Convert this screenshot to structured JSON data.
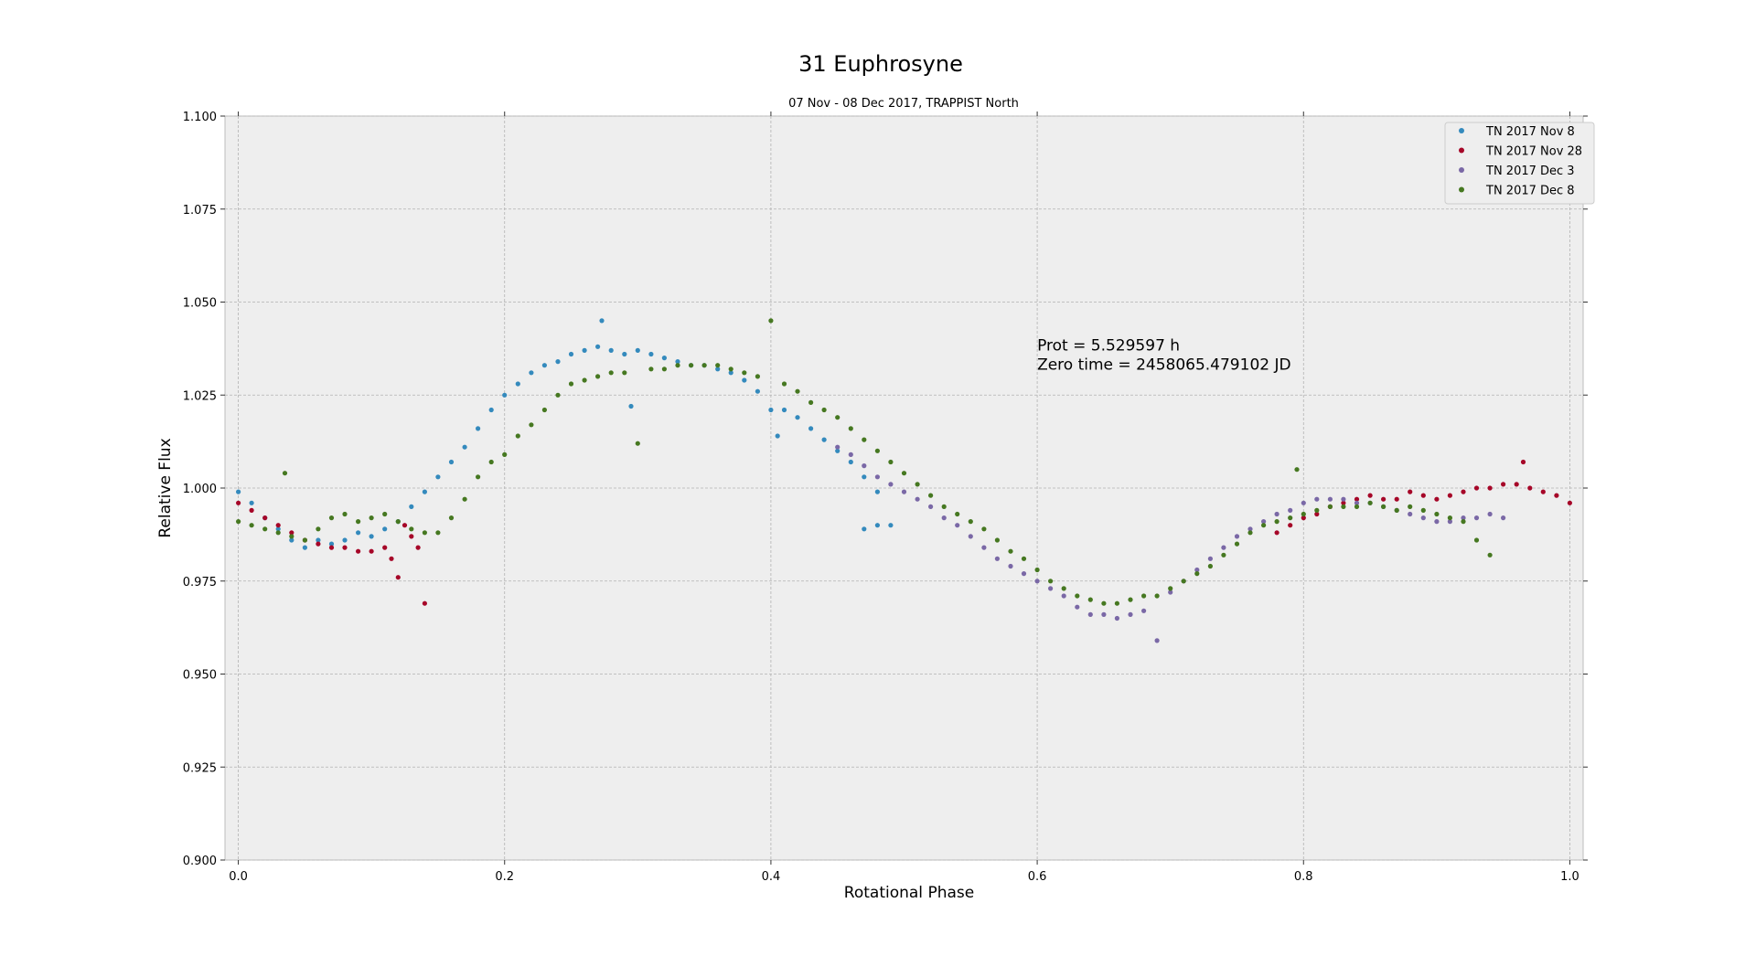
{
  "chart_data": {
    "type": "scatter",
    "title": "31 Euphrosyne",
    "subtitle": "07 Nov - 08 Dec 2017, TRAPPIST North",
    "xlabel": "Rotational Phase",
    "ylabel": "Relative Flux",
    "xlim": [
      -0.01,
      1.01
    ],
    "ylim": [
      0.9,
      1.1
    ],
    "xticks": [
      "0.0",
      "0.2",
      "0.4",
      "0.6",
      "0.8",
      "1.0"
    ],
    "yticks": [
      "0.900",
      "0.925",
      "0.950",
      "0.975",
      "1.000",
      "1.025",
      "1.050",
      "1.075",
      "1.100"
    ],
    "grid": true,
    "legend_position": "top-right",
    "annotation_lines": [
      "Prot = 5.529597 h",
      "Zero time = 2458065.479102 JD"
    ],
    "annotation_anchor": {
      "x": 0.6,
      "y": 1.037
    },
    "background_color": "#eeeeee",
    "series": [
      {
        "name": "TN 2017 Nov 8",
        "color": "#348abd",
        "points": [
          [
            0.0,
            0.999
          ],
          [
            0.01,
            0.996
          ],
          [
            0.02,
            0.992
          ],
          [
            0.03,
            0.989
          ],
          [
            0.04,
            0.986
          ],
          [
            0.05,
            0.984
          ],
          [
            0.06,
            0.986
          ],
          [
            0.07,
            0.985
          ],
          [
            0.08,
            0.986
          ],
          [
            0.09,
            0.988
          ],
          [
            0.1,
            0.987
          ],
          [
            0.11,
            0.989
          ],
          [
            0.12,
            0.991
          ],
          [
            0.13,
            0.995
          ],
          [
            0.14,
            0.999
          ],
          [
            0.15,
            1.003
          ],
          [
            0.16,
            1.007
          ],
          [
            0.17,
            1.011
          ],
          [
            0.18,
            1.016
          ],
          [
            0.19,
            1.021
          ],
          [
            0.2,
            1.025
          ],
          [
            0.21,
            1.028
          ],
          [
            0.22,
            1.031
          ],
          [
            0.23,
            1.033
          ],
          [
            0.24,
            1.034
          ],
          [
            0.25,
            1.036
          ],
          [
            0.26,
            1.037
          ],
          [
            0.27,
            1.038
          ],
          [
            0.273,
            1.045
          ],
          [
            0.28,
            1.037
          ],
          [
            0.29,
            1.036
          ],
          [
            0.295,
            1.022
          ],
          [
            0.3,
            1.037
          ],
          [
            0.31,
            1.036
          ],
          [
            0.32,
            1.035
          ],
          [
            0.33,
            1.034
          ],
          [
            0.34,
            1.033
          ],
          [
            0.35,
            1.033
          ],
          [
            0.36,
            1.032
          ],
          [
            0.37,
            1.031
          ],
          [
            0.38,
            1.029
          ],
          [
            0.39,
            1.026
          ],
          [
            0.4,
            1.021
          ],
          [
            0.405,
            1.014
          ],
          [
            0.41,
            1.021
          ],
          [
            0.42,
            1.019
          ],
          [
            0.43,
            1.016
          ],
          [
            0.44,
            1.013
          ],
          [
            0.45,
            1.01
          ],
          [
            0.46,
            1.007
          ],
          [
            0.47,
            1.003
          ],
          [
            0.48,
            0.999
          ],
          [
            0.47,
            0.989
          ],
          [
            0.48,
            0.99
          ],
          [
            0.49,
            0.99
          ]
        ]
      },
      {
        "name": "TN 2017 Nov 28",
        "color": "#a60628",
        "points": [
          [
            0.0,
            0.996
          ],
          [
            0.01,
            0.994
          ],
          [
            0.02,
            0.992
          ],
          [
            0.03,
            0.99
          ],
          [
            0.04,
            0.988
          ],
          [
            0.05,
            0.986
          ],
          [
            0.06,
            0.985
          ],
          [
            0.07,
            0.984
          ],
          [
            0.08,
            0.984
          ],
          [
            0.09,
            0.983
          ],
          [
            0.1,
            0.983
          ],
          [
            0.11,
            0.984
          ],
          [
            0.115,
            0.981
          ],
          [
            0.12,
            0.976
          ],
          [
            0.125,
            0.99
          ],
          [
            0.13,
            0.987
          ],
          [
            0.14,
            0.969
          ],
          [
            0.135,
            0.984
          ],
          [
            0.78,
            0.988
          ],
          [
            0.79,
            0.99
          ],
          [
            0.8,
            0.992
          ],
          [
            0.81,
            0.993
          ],
          [
            0.82,
            0.995
          ],
          [
            0.83,
            0.996
          ],
          [
            0.84,
            0.997
          ],
          [
            0.85,
            0.998
          ],
          [
            0.86,
            0.997
          ],
          [
            0.87,
            0.997
          ],
          [
            0.88,
            0.999
          ],
          [
            0.89,
            0.998
          ],
          [
            0.9,
            0.997
          ],
          [
            0.91,
            0.998
          ],
          [
            0.92,
            0.999
          ],
          [
            0.93,
            1.0
          ],
          [
            0.94,
            1.0
          ],
          [
            0.95,
            1.001
          ],
          [
            0.96,
            1.001
          ],
          [
            0.965,
            1.007
          ],
          [
            0.97,
            1.0
          ],
          [
            0.98,
            0.999
          ],
          [
            0.99,
            0.998
          ],
          [
            1.0,
            0.996
          ]
        ]
      },
      {
        "name": "TN 2017 Dec 3",
        "color": "#7a68a6",
        "points": [
          [
            0.45,
            1.011
          ],
          [
            0.46,
            1.009
          ],
          [
            0.47,
            1.006
          ],
          [
            0.48,
            1.003
          ],
          [
            0.49,
            1.001
          ],
          [
            0.5,
            0.999
          ],
          [
            0.51,
            0.997
          ],
          [
            0.52,
            0.995
          ],
          [
            0.53,
            0.992
          ],
          [
            0.54,
            0.99
          ],
          [
            0.55,
            0.987
          ],
          [
            0.56,
            0.984
          ],
          [
            0.57,
            0.981
          ],
          [
            0.58,
            0.979
          ],
          [
            0.59,
            0.977
          ],
          [
            0.6,
            0.975
          ],
          [
            0.61,
            0.973
          ],
          [
            0.62,
            0.971
          ],
          [
            0.63,
            0.968
          ],
          [
            0.64,
            0.966
          ],
          [
            0.65,
            0.966
          ],
          [
            0.66,
            0.965
          ],
          [
            0.67,
            0.966
          ],
          [
            0.68,
            0.967
          ],
          [
            0.69,
            0.959
          ],
          [
            0.7,
            0.972
          ],
          [
            0.71,
            0.975
          ],
          [
            0.72,
            0.978
          ],
          [
            0.73,
            0.981
          ],
          [
            0.74,
            0.984
          ],
          [
            0.75,
            0.987
          ],
          [
            0.76,
            0.989
          ],
          [
            0.77,
            0.991
          ],
          [
            0.78,
            0.993
          ],
          [
            0.79,
            0.994
          ],
          [
            0.8,
            0.996
          ],
          [
            0.81,
            0.997
          ],
          [
            0.82,
            0.997
          ],
          [
            0.83,
            0.997
          ],
          [
            0.84,
            0.996
          ],
          [
            0.85,
            0.996
          ],
          [
            0.86,
            0.995
          ],
          [
            0.87,
            0.994
          ],
          [
            0.88,
            0.993
          ],
          [
            0.89,
            0.992
          ],
          [
            0.9,
            0.991
          ],
          [
            0.91,
            0.991
          ],
          [
            0.92,
            0.992
          ],
          [
            0.93,
            0.992
          ],
          [
            0.94,
            0.993
          ],
          [
            0.95,
            0.992
          ]
        ]
      },
      {
        "name": "TN 2017 Dec 8",
        "color": "#467821",
        "points": [
          [
            0.0,
            0.991
          ],
          [
            0.01,
            0.99
          ],
          [
            0.02,
            0.989
          ],
          [
            0.03,
            0.988
          ],
          [
            0.035,
            1.004
          ],
          [
            0.04,
            0.987
          ],
          [
            0.05,
            0.986
          ],
          [
            0.06,
            0.989
          ],
          [
            0.07,
            0.992
          ],
          [
            0.08,
            0.993
          ],
          [
            0.09,
            0.991
          ],
          [
            0.1,
            0.992
          ],
          [
            0.11,
            0.993
          ],
          [
            0.12,
            0.991
          ],
          [
            0.13,
            0.989
          ],
          [
            0.14,
            0.988
          ],
          [
            0.15,
            0.988
          ],
          [
            0.16,
            0.992
          ],
          [
            0.17,
            0.997
          ],
          [
            0.18,
            1.003
          ],
          [
            0.19,
            1.007
          ],
          [
            0.2,
            1.009
          ],
          [
            0.21,
            1.014
          ],
          [
            0.22,
            1.017
          ],
          [
            0.23,
            1.021
          ],
          [
            0.24,
            1.025
          ],
          [
            0.25,
            1.028
          ],
          [
            0.26,
            1.029
          ],
          [
            0.27,
            1.03
          ],
          [
            0.28,
            1.031
          ],
          [
            0.29,
            1.031
          ],
          [
            0.3,
            1.012
          ],
          [
            0.31,
            1.032
          ],
          [
            0.32,
            1.032
          ],
          [
            0.33,
            1.033
          ],
          [
            0.34,
            1.033
          ],
          [
            0.35,
            1.033
          ],
          [
            0.36,
            1.033
          ],
          [
            0.37,
            1.032
          ],
          [
            0.38,
            1.031
          ],
          [
            0.39,
            1.03
          ],
          [
            0.4,
            1.045
          ],
          [
            0.41,
            1.028
          ],
          [
            0.42,
            1.026
          ],
          [
            0.43,
            1.023
          ],
          [
            0.44,
            1.021
          ],
          [
            0.45,
            1.019
          ],
          [
            0.46,
            1.016
          ],
          [
            0.47,
            1.013
          ],
          [
            0.48,
            1.01
          ],
          [
            0.49,
            1.007
          ],
          [
            0.5,
            1.004
          ],
          [
            0.51,
            1.001
          ],
          [
            0.52,
            0.998
          ],
          [
            0.53,
            0.995
          ],
          [
            0.54,
            0.993
          ],
          [
            0.55,
            0.991
          ],
          [
            0.56,
            0.989
          ],
          [
            0.57,
            0.986
          ],
          [
            0.58,
            0.983
          ],
          [
            0.59,
            0.981
          ],
          [
            0.6,
            0.978
          ],
          [
            0.61,
            0.975
          ],
          [
            0.62,
            0.973
          ],
          [
            0.63,
            0.971
          ],
          [
            0.64,
            0.97
          ],
          [
            0.65,
            0.969
          ],
          [
            0.66,
            0.969
          ],
          [
            0.67,
            0.97
          ],
          [
            0.68,
            0.971
          ],
          [
            0.69,
            0.971
          ],
          [
            0.7,
            0.973
          ],
          [
            0.71,
            0.975
          ],
          [
            0.72,
            0.977
          ],
          [
            0.73,
            0.979
          ],
          [
            0.74,
            0.982
          ],
          [
            0.75,
            0.985
          ],
          [
            0.76,
            0.988
          ],
          [
            0.77,
            0.99
          ],
          [
            0.78,
            0.991
          ],
          [
            0.79,
            0.992
          ],
          [
            0.795,
            1.005
          ],
          [
            0.8,
            0.993
          ],
          [
            0.81,
            0.994
          ],
          [
            0.82,
            0.995
          ],
          [
            0.83,
            0.995
          ],
          [
            0.84,
            0.995
          ],
          [
            0.85,
            0.996
          ],
          [
            0.86,
            0.995
          ],
          [
            0.87,
            0.994
          ],
          [
            0.88,
            0.995
          ],
          [
            0.89,
            0.994
          ],
          [
            0.9,
            0.993
          ],
          [
            0.91,
            0.992
          ],
          [
            0.92,
            0.991
          ],
          [
            0.93,
            0.986
          ],
          [
            0.94,
            0.982
          ]
        ]
      }
    ]
  }
}
